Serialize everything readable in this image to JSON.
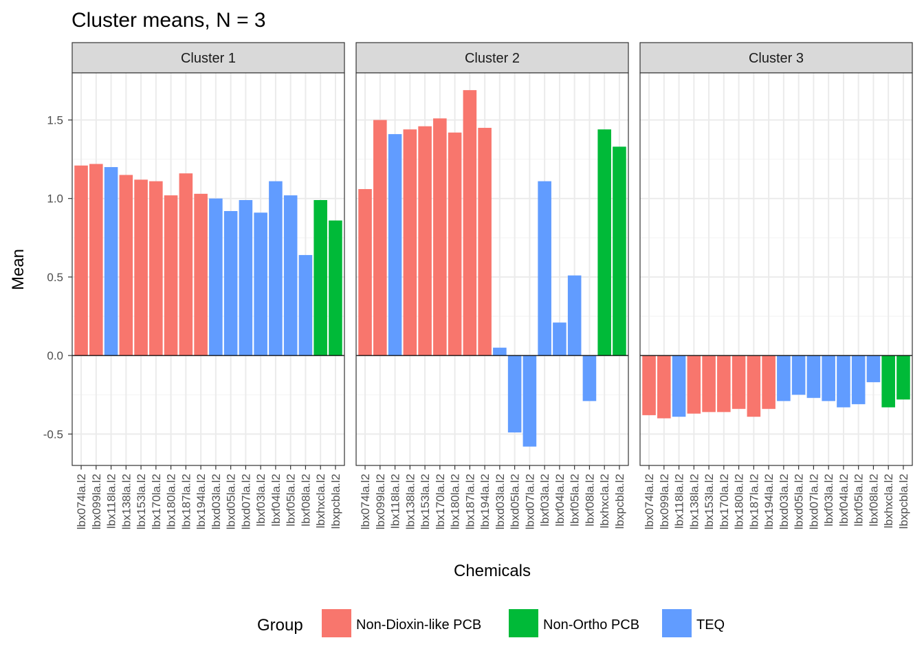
{
  "chart_data": {
    "type": "bar",
    "title": "Cluster means, N = 3",
    "xlabel": "Chemicals",
    "ylabel": "Mean",
    "ylim": [
      -0.7,
      1.8
    ],
    "yticks": [
      -0.5,
      0.0,
      0.5,
      1.0,
      1.5
    ],
    "ytick_labels": [
      "-0.5",
      "0.0",
      "0.5",
      "1.0",
      "1.5"
    ],
    "grid": true,
    "legend_position": "bottom",
    "legend": {
      "title": "Group",
      "entries": [
        {
          "name": "Non-Dioxin-like PCB",
          "color": "#F8766D"
        },
        {
          "name": "Non-Ortho PCB",
          "color": "#00BA38"
        },
        {
          "name": "TEQ",
          "color": "#619CFF"
        }
      ]
    },
    "categories": [
      "lbx074la.l2",
      "lbx099la.l2",
      "lbx118la.l2",
      "lbx138la.l2",
      "lbx153la.l2",
      "lbx170la.l2",
      "lbx180la.l2",
      "lbx187la.l2",
      "lbx194la.l2",
      "lbxd03la.l2",
      "lbxd05la.l2",
      "lbxd07la.l2",
      "lbxf03la.l2",
      "lbxf04la.l2",
      "lbxf05la.l2",
      "lbxf08la.l2",
      "lbxhxcla.l2",
      "lbxpcbla.l2"
    ],
    "groups": [
      "Non-Dioxin-like PCB",
      "Non-Dioxin-like PCB",
      "TEQ",
      "Non-Dioxin-like PCB",
      "Non-Dioxin-like PCB",
      "Non-Dioxin-like PCB",
      "Non-Dioxin-like PCB",
      "Non-Dioxin-like PCB",
      "Non-Dioxin-like PCB",
      "TEQ",
      "TEQ",
      "TEQ",
      "TEQ",
      "TEQ",
      "TEQ",
      "TEQ",
      "Non-Ortho PCB",
      "Non-Ortho PCB"
    ],
    "panels": [
      {
        "name": "Cluster 1",
        "values": [
          1.21,
          1.22,
          1.2,
          1.15,
          1.12,
          1.11,
          1.02,
          1.16,
          1.03,
          1.0,
          0.92,
          0.99,
          0.91,
          1.11,
          1.02,
          0.64,
          0.99,
          0.86
        ]
      },
      {
        "name": "Cluster 2",
        "values": [
          1.06,
          1.5,
          1.41,
          1.44,
          1.46,
          1.51,
          1.42,
          1.69,
          1.45,
          0.05,
          -0.49,
          -0.58,
          1.11,
          0.21,
          0.51,
          -0.29,
          1.44,
          1.33
        ]
      },
      {
        "name": "Cluster 3",
        "values": [
          -0.38,
          -0.4,
          -0.39,
          -0.37,
          -0.36,
          -0.36,
          -0.34,
          -0.39,
          -0.34,
          -0.29,
          -0.25,
          -0.27,
          -0.29,
          -0.33,
          -0.31,
          -0.17,
          -0.33,
          -0.28
        ]
      }
    ]
  }
}
